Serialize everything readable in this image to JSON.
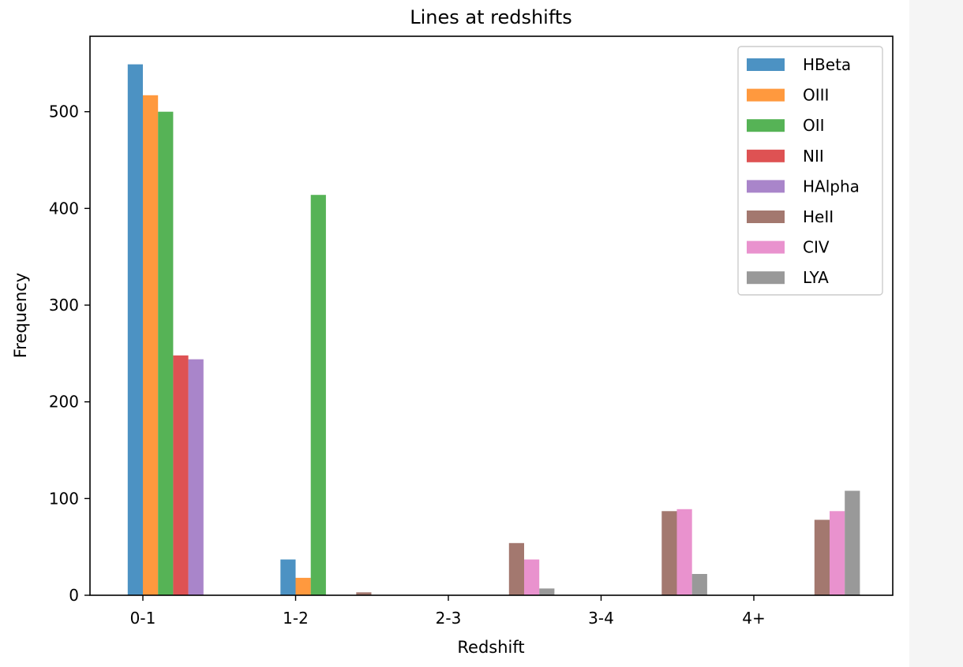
{
  "chart_data": {
    "type": "bar",
    "title": "Lines at redshifts",
    "xlabel": "Redshift",
    "ylabel": "Frequency",
    "ylim": [
      0,
      578
    ],
    "yticks": [
      0,
      100,
      200,
      300,
      400,
      500
    ],
    "categories": [
      "0-1",
      "1-2",
      "2-3",
      "3-4",
      "4+"
    ],
    "legend_position": "top-right",
    "grid": false,
    "series": [
      {
        "name": "HBeta",
        "color": "#1f77b4",
        "values": [
          549,
          37,
          0,
          0,
          0
        ]
      },
      {
        "name": "OIII",
        "color": "#ff7f0e",
        "values": [
          517,
          18,
          0,
          0,
          0
        ]
      },
      {
        "name": "OII",
        "color": "#2ca02c",
        "values": [
          500,
          414,
          0,
          0,
          0
        ]
      },
      {
        "name": "NII",
        "color": "#d62728",
        "values": [
          248,
          0,
          0,
          0,
          0
        ]
      },
      {
        "name": "HAlpha",
        "color": "#9467bd",
        "values": [
          244,
          0,
          0,
          0,
          0
        ]
      },
      {
        "name": "HeII",
        "color": "#8c564b",
        "values": [
          0,
          3,
          54,
          87,
          78
        ]
      },
      {
        "name": "CIV",
        "color": "#e377c2",
        "values": [
          0,
          0,
          37,
          89,
          87
        ]
      },
      {
        "name": "LYA",
        "color": "#7f7f7f",
        "values": [
          0,
          0,
          7,
          22,
          108
        ]
      }
    ]
  }
}
